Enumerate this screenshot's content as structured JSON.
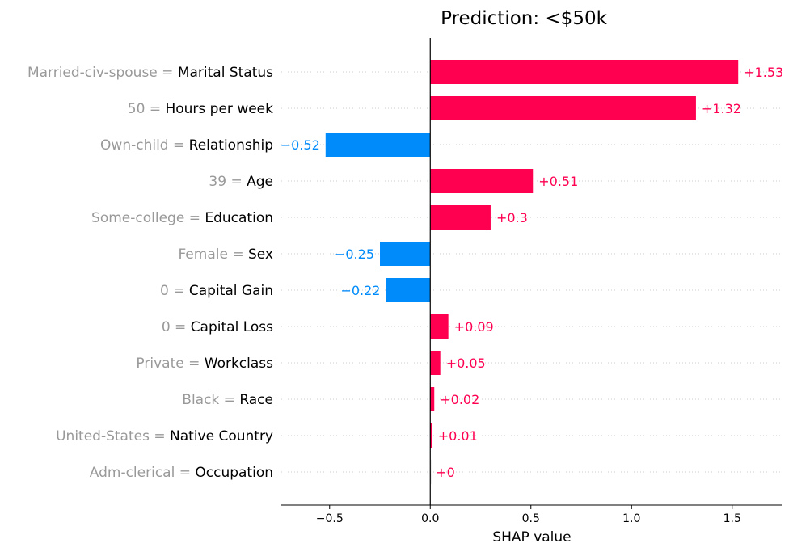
{
  "chart_data": {
    "type": "bar",
    "orientation": "horizontal",
    "title": "Prediction: <$50k",
    "xlabel": "SHAP value",
    "xlim": [
      -0.74,
      1.75
    ],
    "xticks": [
      -0.5,
      0.0,
      0.5,
      1.0,
      1.5
    ],
    "xtick_labels": [
      "−0.5",
      "0.0",
      "0.5",
      "1.0",
      "1.5"
    ],
    "grid": "horizontal dotted",
    "colors": {
      "positive": "#ff0051",
      "negative": "#008bfb",
      "value_text": "#999999",
      "name_text": "#000000"
    },
    "features": [
      {
        "value": "Married-civ-spouse",
        "name": "Marital Status",
        "shap": 1.53,
        "label": "+1.53"
      },
      {
        "value": "50",
        "name": "Hours per week",
        "shap": 1.32,
        "label": "+1.32"
      },
      {
        "value": "Own-child",
        "name": "Relationship",
        "shap": -0.52,
        "label": "−0.52"
      },
      {
        "value": "39",
        "name": "Age",
        "shap": 0.51,
        "label": "+0.51"
      },
      {
        "value": "Some-college",
        "name": "Education",
        "shap": 0.3,
        "label": "+0.3"
      },
      {
        "value": "Female",
        "name": "Sex",
        "shap": -0.25,
        "label": "−0.25"
      },
      {
        "value": "0",
        "name": "Capital Gain",
        "shap": -0.22,
        "label": "−0.22"
      },
      {
        "value": "0",
        "name": "Capital Loss",
        "shap": 0.09,
        "label": "+0.09"
      },
      {
        "value": "Private",
        "name": "Workclass",
        "shap": 0.05,
        "label": "+0.05"
      },
      {
        "value": "Black",
        "name": "Race",
        "shap": 0.02,
        "label": "+0.02"
      },
      {
        "value": "United-States",
        "name": "Native Country",
        "shap": 0.01,
        "label": "+0.01"
      },
      {
        "value": "Adm-clerical",
        "name": "Occupation",
        "shap": 0.0,
        "label": "+0"
      }
    ]
  }
}
